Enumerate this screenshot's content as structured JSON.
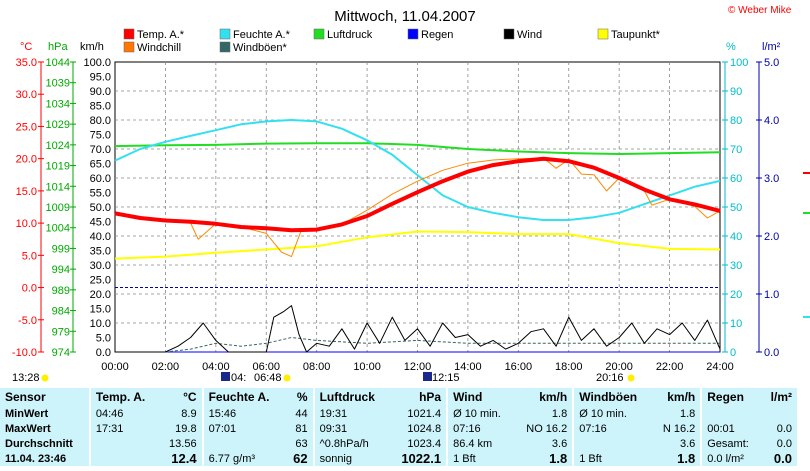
{
  "title": "Mittwoch, 11.04.2007",
  "copyright": "© Weber Mike",
  "units": {
    "temp": "°C",
    "pressure": "hPa",
    "wind": "km/h",
    "humidity": "%",
    "rain": "l/m²"
  },
  "legend": [
    {
      "label": "Temp. A.*",
      "color": "#ff0000"
    },
    {
      "label": "Feuchte A.*",
      "color": "#33e0f0"
    },
    {
      "label": "Luftdruck",
      "color": "#22dd22"
    },
    {
      "label": "Regen",
      "color": "#0000ff"
    },
    {
      "label": "Wind",
      "color": "#000000"
    },
    {
      "label": "Taupunkt*",
      "color": "#ffff00"
    },
    {
      "label": "Windchill",
      "color": "#ff7700"
    },
    {
      "label": "Windböen*",
      "color": "#336666"
    }
  ],
  "chart_data": {
    "type": "line",
    "x_ticks": [
      "00:00",
      "02:00",
      "04:00",
      "06:00",
      "08:00",
      "10:00",
      "12:00",
      "14:00",
      "16:00",
      "18:00",
      "20:00",
      "22:00",
      "24:00"
    ],
    "axes": {
      "temp": {
        "min": -10,
        "max": 35,
        "ticks": [
          "35.0",
          "30.0",
          "25.0",
          "20.0",
          "15.0",
          "10.0",
          "5.0",
          "0.0",
          "-5.0",
          "-10.0"
        ]
      },
      "pressure": {
        "min": 974,
        "max": 1044,
        "ticks": [
          "1044",
          "1039",
          "1034",
          "1029",
          "1024",
          "1019",
          "1014",
          "1009",
          "1004",
          "999",
          "994",
          "989",
          "984",
          "979",
          "974"
        ]
      },
      "wind": {
        "min": 0,
        "max": 100,
        "ticks": [
          "100.0",
          "95.0",
          "90.0",
          "85.0",
          "80.0",
          "75.0",
          "70.0",
          "65.0",
          "60.0",
          "55.0",
          "50.0",
          "45.0",
          "40.0",
          "35.0",
          "30.0",
          "25.0",
          "20.0",
          "15.0",
          "10.0",
          "5.0",
          "0.0"
        ]
      },
      "humidity": {
        "min": 0,
        "max": 100,
        "ticks": [
          "100",
          "90",
          "80",
          "70",
          "60",
          "50",
          "40",
          "30",
          "20",
          "10",
          "0"
        ]
      },
      "rain": {
        "min": 0,
        "max": 5,
        "ticks": [
          "5.0",
          "4.0",
          "3.0",
          "2.0",
          "1.0",
          "0.0"
        ]
      }
    },
    "series": [
      {
        "name": "Temp. A.*",
        "axis": "temp",
        "color": "#ff0000",
        "width": 4,
        "x": [
          0,
          1,
          2,
          3,
          4,
          5,
          6,
          7,
          8,
          9,
          10,
          11,
          12,
          13,
          14,
          15,
          16,
          17,
          18,
          19,
          20,
          21,
          22,
          23,
          24
        ],
        "y": [
          11.5,
          10.8,
          10.4,
          10.2,
          9.9,
          9.4,
          9.2,
          8.9,
          9.0,
          9.8,
          11.1,
          13.0,
          14.8,
          16.5,
          18.0,
          19.0,
          19.6,
          20.0,
          19.6,
          18.6,
          17.0,
          15.2,
          13.7,
          12.9,
          11.9
        ]
      },
      {
        "name": "Windchill",
        "axis": "temp",
        "color": "#ff8800",
        "width": 1,
        "x": [
          0,
          1,
          2,
          3,
          3.3,
          4,
          5,
          6,
          6.6,
          7,
          7.4,
          8,
          9,
          10,
          11,
          12,
          13,
          14,
          15,
          16,
          17,
          17.5,
          18,
          18.5,
          19,
          19.5,
          20,
          21,
          21.3,
          22,
          23,
          23.5,
          24
        ],
        "y": [
          11.5,
          10.8,
          10.4,
          10.0,
          7.5,
          9.9,
          9.4,
          8.4,
          5.5,
          4.8,
          9.0,
          9.0,
          9.8,
          12.0,
          14.5,
          16.5,
          18.2,
          19.3,
          19.8,
          20.0,
          20.1,
          18.5,
          19.9,
          17.6,
          17.5,
          15.0,
          17.0,
          15.0,
          12.8,
          13.7,
          12.6,
          10.8,
          11.9
        ]
      },
      {
        "name": "Feuchte A.*",
        "axis": "humidity",
        "color": "#33e0f0",
        "width": 2,
        "x": [
          0,
          1,
          2,
          3,
          4,
          5,
          6,
          7,
          8,
          9,
          10,
          11,
          12,
          13,
          14,
          15,
          16,
          17,
          18,
          19,
          20,
          21,
          22,
          23,
          24
        ],
        "y": [
          66,
          70,
          72.5,
          74.5,
          76.5,
          78.5,
          79.5,
          80,
          79.5,
          77,
          73,
          68,
          61,
          54,
          50,
          48,
          46.5,
          45.5,
          45.5,
          46.5,
          48,
          51,
          54,
          57,
          59
        ]
      },
      {
        "name": "Luftdruck",
        "axis": "pressure",
        "color": "#22dd22",
        "width": 2,
        "x": [
          0,
          2,
          4,
          6,
          8,
          10,
          12,
          14,
          16,
          18,
          20,
          22,
          24
        ],
        "y": [
          1023.7,
          1023.9,
          1024.0,
          1024.3,
          1024.4,
          1024.4,
          1024.0,
          1023.0,
          1022.4,
          1022.0,
          1021.8,
          1022.0,
          1022.2
        ]
      },
      {
        "name": "Taupunkt*",
        "axis": "temp",
        "color": "#ffff00",
        "width": 2,
        "x": [
          0,
          2,
          4,
          6,
          8,
          10,
          12,
          14,
          16,
          18,
          20,
          22,
          24
        ],
        "y": [
          4.5,
          4.8,
          5.4,
          5.9,
          6.4,
          7.8,
          8.7,
          8.6,
          8.3,
          8.3,
          6.9,
          6.0,
          5.9
        ]
      },
      {
        "name": "Wind",
        "axis": "wind",
        "color": "#000000",
        "width": 1,
        "x": [
          0,
          0.5,
          1,
          1.5,
          2,
          2.5,
          3,
          3.5,
          4,
          4.5,
          5,
          5.5,
          6,
          6.3,
          6.7,
          7,
          7.3,
          7.6,
          8,
          8.5,
          9,
          9.5,
          10,
          10.5,
          11,
          11.5,
          12,
          12.5,
          13,
          13.5,
          14,
          14.5,
          15,
          15.5,
          16,
          16.5,
          17,
          17.5,
          18,
          18.5,
          19,
          19.5,
          20,
          20.5,
          21,
          21.5,
          22,
          22.5,
          23,
          23.5,
          24
        ],
        "y": [
          0,
          0,
          0,
          0,
          0,
          2,
          5,
          10,
          4,
          0,
          0,
          0,
          0,
          12,
          14,
          16,
          6,
          0,
          3,
          2,
          8,
          1,
          10,
          3,
          12,
          4,
          8,
          2,
          10,
          5,
          6,
          2,
          4,
          1,
          3,
          7,
          8,
          2,
          12,
          4,
          8,
          2,
          5,
          10,
          3,
          8,
          6,
          10,
          4,
          11,
          1
        ]
      },
      {
        "name": "Windböen*",
        "axis": "wind",
        "color": "#336666",
        "width": 1,
        "x": [
          0,
          2,
          3,
          4,
          5,
          6,
          7,
          8,
          10,
          12,
          14,
          16,
          18,
          20,
          22,
          24
        ],
        "y": [
          0,
          0,
          1,
          3,
          2,
          3,
          5,
          4,
          3,
          4,
          3,
          3,
          3,
          3,
          3,
          3
        ]
      },
      {
        "name": "Regen",
        "axis": "rain",
        "color": "#0000ff",
        "width": 1,
        "x": [
          0,
          24
        ],
        "y": [
          0,
          0
        ]
      }
    ],
    "ref_line": {
      "axis": "temp",
      "value": 0,
      "color": "#0000aa"
    },
    "grid": true
  },
  "sun_times": {
    "sunrise": "13:28",
    "sunrise_label_start": "04:",
    "sunrise_label_end": "06:48",
    "noon": "12:15",
    "sunset": "20:16"
  },
  "summary": {
    "headers": [
      "Sensor",
      "Temp. A.",
      "°C",
      "Feuchte A.",
      "%",
      "Luftdruck",
      "hPa",
      "Wind",
      "km/h",
      "Windböen",
      "km/h",
      "Regen",
      "l/m²"
    ],
    "rows": [
      [
        "MinWert",
        "04:46",
        "8.9",
        "15:46",
        "44",
        "19:31",
        "1021.4",
        "Ø 10 min.",
        "1.8",
        "Ø 10 min.",
        "1.8",
        "",
        ""
      ],
      [
        "MaxWert",
        "17:31",
        "19.8",
        "07:01",
        "81",
        "09:31",
        "1024.8",
        "07:16",
        "NO 16.2",
        "07:16",
        "N 16.2",
        "00:01",
        "0.0"
      ],
      [
        "Durchschnitt",
        "",
        "13.56",
        "",
        "63",
        "^0.8hPa/h",
        "1023.4",
        "86.4 km",
        "3.6",
        "",
        "3.6",
        "Gesamt:",
        "0.0"
      ],
      [
        "11.04. 23:46",
        "",
        "12.4",
        "6.77 g/m³",
        "62",
        "sonnig",
        "1022.1",
        "1 Bft",
        "1.8",
        "1 Bft",
        "1.8",
        "0.0 l/m²",
        "0.0"
      ]
    ]
  }
}
